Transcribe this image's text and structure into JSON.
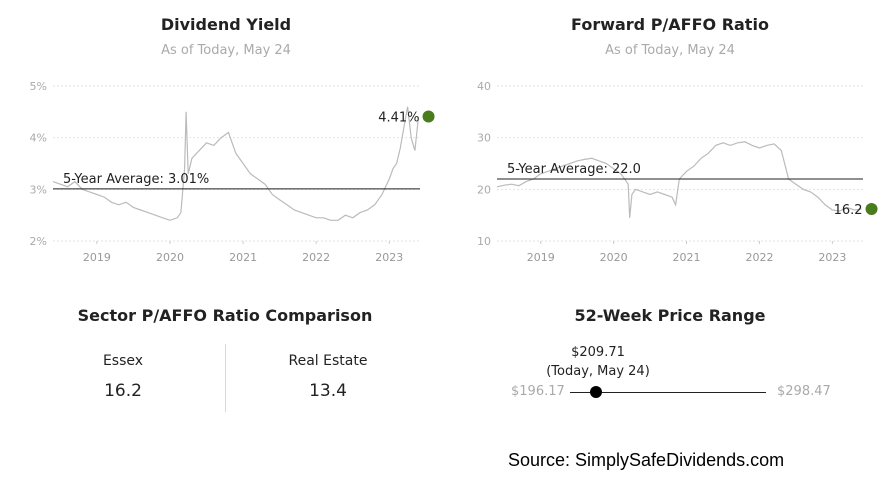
{
  "chart_data": [
    {
      "type": "line",
      "title": "Dividend Yield",
      "subtitle": "As of Today, May 24",
      "xlim": [
        2018.4,
        2023.42
      ],
      "ylim": [
        2,
        5
      ],
      "y_ticks": [
        "2%",
        "3%",
        "4%",
        "5%"
      ],
      "y_tick_values": [
        2,
        3,
        4,
        5
      ],
      "x_ticks": [
        "2019",
        "2020",
        "2021",
        "2022",
        "2023"
      ],
      "x_tick_values": [
        2019,
        2020,
        2021,
        2022,
        2023
      ],
      "grid": true,
      "reference_line": {
        "label": "5-Year Average: 3.01%",
        "value": 3.01
      },
      "current": {
        "label": "4.41%",
        "x": 2023.4,
        "value": 4.41
      },
      "series": [
        {
          "x": [
            2018.4,
            2018.5,
            2018.6,
            2018.7,
            2018.8,
            2018.9,
            2019.0,
            2019.1,
            2019.2,
            2019.3,
            2019.4,
            2019.5,
            2019.6,
            2019.7,
            2019.8,
            2019.9,
            2020.0,
            2020.1,
            2020.15,
            2020.2,
            2020.22,
            2020.25,
            2020.3,
            2020.4,
            2020.5,
            2020.6,
            2020.7,
            2020.8,
            2020.85,
            2020.9,
            2021.0,
            2021.1,
            2021.2,
            2021.3,
            2021.4,
            2021.5,
            2021.6,
            2021.7,
            2021.8,
            2021.9,
            2022.0,
            2022.1,
            2022.2,
            2022.3,
            2022.4,
            2022.5,
            2022.6,
            2022.7,
            2022.8,
            2022.9,
            2023.0,
            2023.05,
            2023.1,
            2023.15,
            2023.2,
            2023.25,
            2023.3,
            2023.35,
            2023.4
          ],
          "values": [
            3.15,
            3.1,
            3.05,
            3.15,
            3.0,
            2.95,
            2.9,
            2.85,
            2.75,
            2.7,
            2.75,
            2.65,
            2.6,
            2.55,
            2.5,
            2.45,
            2.4,
            2.45,
            2.55,
            3.4,
            4.5,
            3.3,
            3.6,
            3.75,
            3.9,
            3.85,
            4.0,
            4.1,
            3.9,
            3.7,
            3.5,
            3.3,
            3.2,
            3.1,
            2.9,
            2.8,
            2.7,
            2.6,
            2.55,
            2.5,
            2.45,
            2.45,
            2.4,
            2.4,
            2.5,
            2.45,
            2.55,
            2.6,
            2.7,
            2.9,
            3.2,
            3.4,
            3.5,
            3.8,
            4.2,
            4.6,
            4.0,
            3.75,
            4.41
          ]
        }
      ]
    },
    {
      "type": "line",
      "title": "Forward P/AFFO Ratio",
      "subtitle": "As of Today, May 24",
      "xlim": [
        2018.4,
        2023.42
      ],
      "ylim": [
        10,
        40
      ],
      "y_ticks": [
        "10",
        "20",
        "30",
        "40"
      ],
      "y_tick_values": [
        10,
        20,
        30,
        40
      ],
      "x_ticks": [
        "2019",
        "2020",
        "2021",
        "2022",
        "2023"
      ],
      "x_tick_values": [
        2019,
        2020,
        2021,
        2022,
        2023
      ],
      "grid": true,
      "reference_line": {
        "label": "5-Year Average: 22.0",
        "value": 22.0
      },
      "current": {
        "label": "16.2",
        "x": 2023.4,
        "value": 16.2
      },
      "series": [
        {
          "x": [
            2018.4,
            2018.5,
            2018.6,
            2018.7,
            2018.8,
            2018.9,
            2019.0,
            2019.1,
            2019.2,
            2019.3,
            2019.4,
            2019.5,
            2019.6,
            2019.7,
            2019.8,
            2019.9,
            2020.0,
            2020.1,
            2020.2,
            2020.22,
            2020.25,
            2020.3,
            2020.4,
            2020.5,
            2020.6,
            2020.7,
            2020.8,
            2020.85,
            2020.9,
            2021.0,
            2021.1,
            2021.2,
            2021.3,
            2021.4,
            2021.5,
            2021.6,
            2021.7,
            2021.8,
            2021.9,
            2022.0,
            2022.1,
            2022.2,
            2022.3,
            2022.4,
            2022.5,
            2022.6,
            2022.7,
            2022.8,
            2022.9,
            2023.0,
            2023.1,
            2023.2,
            2023.3,
            2023.4
          ],
          "values": [
            20.5,
            20.8,
            21.0,
            20.7,
            21.5,
            22.0,
            23.0,
            23.5,
            24.0,
            24.5,
            25.0,
            25.5,
            25.8,
            26.0,
            25.5,
            25.0,
            24.0,
            23.0,
            21.0,
            14.5,
            19.0,
            20.0,
            19.5,
            19.0,
            19.5,
            19.0,
            18.5,
            17.0,
            22.0,
            23.5,
            24.5,
            26.0,
            27.0,
            28.5,
            29.0,
            28.5,
            29.0,
            29.2,
            28.5,
            28.0,
            28.5,
            28.8,
            27.5,
            22.0,
            21.0,
            20.0,
            19.5,
            18.5,
            17.0,
            16.0,
            15.8,
            16.5,
            16.0,
            16.2
          ]
        }
      ]
    }
  ],
  "sector": {
    "title": "Sector P/AFFO Ratio Comparison",
    "items": [
      {
        "name": "Essex",
        "value": "16.2"
      },
      {
        "name": "Real Estate",
        "value": "13.4"
      }
    ]
  },
  "range52": {
    "title": "52-Week Price Range",
    "current_price": "$209.71",
    "current_note": "(Today, May 24)",
    "low": "$196.17",
    "high": "$298.47",
    "low_value": 196.17,
    "high_value": 298.47,
    "current_value": 209.71
  },
  "source": "Source: SimplySafeDividends.com",
  "colors": {
    "accent_green": "#4a7c1e",
    "line_gray": "#bbbbbb",
    "muted_text": "#aaaaaa"
  }
}
